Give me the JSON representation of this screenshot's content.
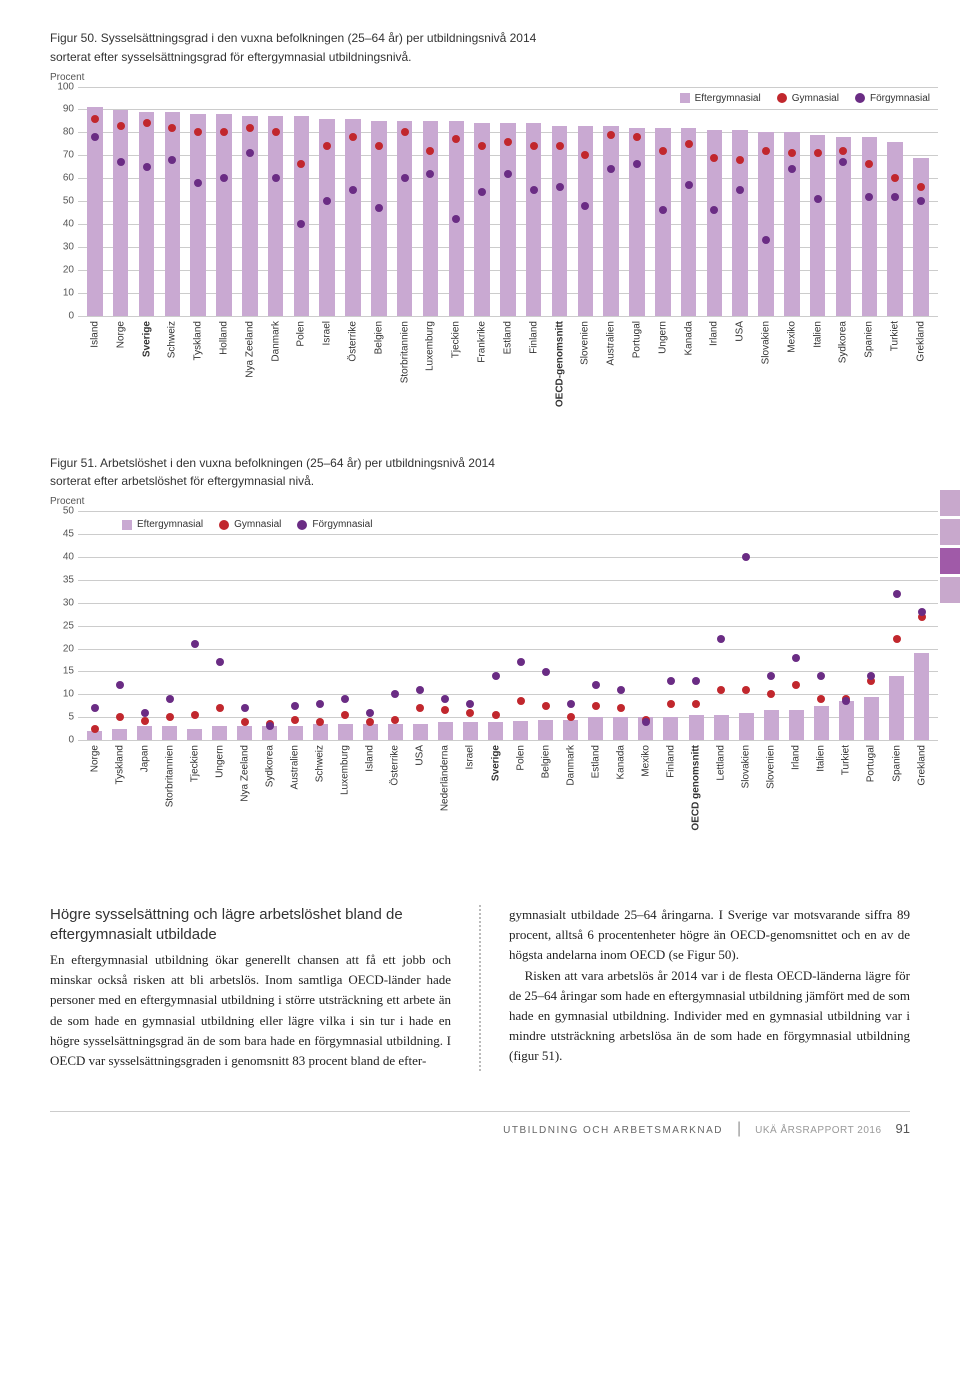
{
  "colors": {
    "bar": "#c9a9d2",
    "efter": "#c9a9d2",
    "gym": "#c1272d",
    "for": "#6a2c84",
    "grid": "#cccccc",
    "bg": "#ffffff"
  },
  "chart50": {
    "title_l1": "Figur 50. Sysselsättningsgrad i den vuxna befolkningen (25–64 år) per utbildningsnivå 2014",
    "title_l2": "sorterat efter sysselsättningsgrad för eftergymnasial utbildningsnivå.",
    "ylabel": "Procent",
    "ylim": [
      0,
      100
    ],
    "ytick_step": 10,
    "legend": [
      "Eftergymnasial",
      "Gymnasial",
      "Förgymnasial"
    ],
    "data": [
      {
        "c": "Island",
        "e": 91,
        "g": 86,
        "f": 78
      },
      {
        "c": "Norge",
        "e": 90,
        "g": 83,
        "f": 67
      },
      {
        "c": "Sverige",
        "e": 89,
        "g": 84,
        "f": 65,
        "bold": true
      },
      {
        "c": "Schweiz",
        "e": 89,
        "g": 82,
        "f": 68
      },
      {
        "c": "Tyskland",
        "e": 88,
        "g": 80,
        "f": 58
      },
      {
        "c": "Holland",
        "e": 88,
        "g": 80,
        "f": 60
      },
      {
        "c": "Nya Zeeland",
        "e": 87,
        "g": 82,
        "f": 71
      },
      {
        "c": "Danmark",
        "e": 87,
        "g": 80,
        "f": 60
      },
      {
        "c": "Polen",
        "e": 87,
        "g": 66,
        "f": 40
      },
      {
        "c": "Israel",
        "e": 86,
        "g": 74,
        "f": 50
      },
      {
        "c": "Österrike",
        "e": 86,
        "g": 78,
        "f": 55
      },
      {
        "c": "Belgien",
        "e": 85,
        "g": 74,
        "f": 47
      },
      {
        "c": "Storbritannien",
        "e": 85,
        "g": 80,
        "f": 60
      },
      {
        "c": "Luxemburg",
        "e": 85,
        "g": 72,
        "f": 62
      },
      {
        "c": "Tjeckien",
        "e": 85,
        "g": 77,
        "f": 42
      },
      {
        "c": "Frankrike",
        "e": 84,
        "g": 74,
        "f": 54
      },
      {
        "c": "Estland",
        "e": 84,
        "g": 76,
        "f": 62
      },
      {
        "c": "Finland",
        "e": 84,
        "g": 74,
        "f": 55
      },
      {
        "c": "OECD-genomsnitt",
        "e": 83,
        "g": 74,
        "f": 56,
        "bold": true
      },
      {
        "c": "Slovenien",
        "e": 83,
        "g": 70,
        "f": 48
      },
      {
        "c": "Australien",
        "e": 83,
        "g": 79,
        "f": 64
      },
      {
        "c": "Portugal",
        "e": 82,
        "g": 78,
        "f": 66
      },
      {
        "c": "Ungern",
        "e": 82,
        "g": 72,
        "f": 46
      },
      {
        "c": "Kanada",
        "e": 82,
        "g": 75,
        "f": 57
      },
      {
        "c": "Irland",
        "e": 81,
        "g": 69,
        "f": 46
      },
      {
        "c": "USA",
        "e": 81,
        "g": 68,
        "f": 55
      },
      {
        "c": "Slovakien",
        "e": 80,
        "g": 72,
        "f": 33
      },
      {
        "c": "Mexiko",
        "e": 80,
        "g": 71,
        "f": 64
      },
      {
        "c": "Italien",
        "e": 79,
        "g": 71,
        "f": 51
      },
      {
        "c": "Sydkorea",
        "e": 78,
        "g": 72,
        "f": 67
      },
      {
        "c": "Spanien",
        "e": 78,
        "g": 66,
        "f": 52
      },
      {
        "c": "Turkiet",
        "e": 76,
        "g": 60,
        "f": 52
      },
      {
        "c": "Grekland",
        "e": 69,
        "g": 56,
        "f": 50
      }
    ]
  },
  "chart51": {
    "title_l1": "Figur 51. Arbetslöshet i den vuxna befolkningen (25–64 år) per utbildningsnivå 2014",
    "title_l2": "sorterat efter arbetslöshet för eftergymnasial nivå.",
    "ylabel": "Procent",
    "ylim": [
      0,
      50
    ],
    "ytick_step": 5,
    "legend": [
      "Eftergymnasial",
      "Gymnasial",
      "Förgymnasial"
    ],
    "data": [
      {
        "c": "Norge",
        "e": 2,
        "g": 2.5,
        "f": 7
      },
      {
        "c": "Tyskland",
        "e": 2.5,
        "g": 5,
        "f": 12
      },
      {
        "c": "Japan",
        "e": 3,
        "g": 4.2,
        "f": 6
      },
      {
        "c": "Storbritannien",
        "e": 3,
        "g": 5,
        "f": 9
      },
      {
        "c": "Tjeckien",
        "e": 2.5,
        "g": 5.5,
        "f": 21
      },
      {
        "c": "Ungern",
        "e": 3,
        "g": 7,
        "f": 17
      },
      {
        "c": "Nya Zeeland",
        "e": 3,
        "g": 4,
        "f": 7
      },
      {
        "c": "Sydkorea",
        "e": 3,
        "g": 3.5,
        "f": 3
      },
      {
        "c": "Australien",
        "e": 3.2,
        "g": 4.5,
        "f": 7.5
      },
      {
        "c": "Schweiz",
        "e": 3.5,
        "g": 4,
        "f": 8
      },
      {
        "c": "Luxemburg",
        "e": 3.5,
        "g": 5.5,
        "f": 9
      },
      {
        "c": "Island",
        "e": 3.5,
        "g": 4,
        "f": 6
      },
      {
        "c": "Österrike",
        "e": 3.5,
        "g": 4.5,
        "f": 10
      },
      {
        "c": "USA",
        "e": 3.5,
        "g": 7,
        "f": 11
      },
      {
        "c": "Nederländerna",
        "e": 4,
        "g": 6.5,
        "f": 9
      },
      {
        "c": "Israel",
        "e": 4,
        "g": 6,
        "f": 8
      },
      {
        "c": "Sverige",
        "e": 4,
        "g": 5.5,
        "f": 14,
        "bold": true
      },
      {
        "c": "Polen",
        "e": 4.2,
        "g": 8.5,
        "f": 17
      },
      {
        "c": "Belgien",
        "e": 4.5,
        "g": 7.5,
        "f": 15
      },
      {
        "c": "Danmark",
        "e": 4.5,
        "g": 5,
        "f": 8
      },
      {
        "c": "Estland",
        "e": 5,
        "g": 7.5,
        "f": 12
      },
      {
        "c": "Kanada",
        "e": 5,
        "g": 7,
        "f": 11
      },
      {
        "c": "Mexiko",
        "e": 5,
        "g": 4.5,
        "f": 4
      },
      {
        "c": "Finland",
        "e": 5,
        "g": 8,
        "f": 13
      },
      {
        "c": "OECD genomsnitt",
        "e": 5.5,
        "g": 8,
        "f": 13,
        "bold": true
      },
      {
        "c": "Lettland",
        "e": 5.5,
        "g": 11,
        "f": 22
      },
      {
        "c": "Slovakien",
        "e": 6,
        "g": 11,
        "f": 40
      },
      {
        "c": "Slovenien",
        "e": 6.5,
        "g": 10,
        "f": 14
      },
      {
        "c": "Irland",
        "e": 6.5,
        "g": 12,
        "f": 18
      },
      {
        "c": "Italien",
        "e": 7.5,
        "g": 9,
        "f": 14
      },
      {
        "c": "Turkiet",
        "e": 8.5,
        "g": 9,
        "f": 8.5
      },
      {
        "c": "Portugal",
        "e": 9.5,
        "g": 13,
        "f": 14
      },
      {
        "c": "Spanien",
        "e": 14,
        "g": 22,
        "f": 32
      },
      {
        "c": "Grekland",
        "e": 19,
        "g": 27,
        "f": 28
      }
    ]
  },
  "article": {
    "heading": "Högre sysselsättning och lägre arbetslöshet bland de eftergymnasialt utbildade",
    "left_p1": "En eftergymnasial utbildning ökar generellt chansen att få ett jobb och minskar också risken att bli arbetslös. Inom samtliga OECD-länder hade personer med en eftergymnasial utbildning i större utsträckning ett arbete än de som hade en gymnasial utbildning eller lägre vilka i sin tur i hade en högre sysselsättningsgrad än de som bara hade en förgymnasial utbildning. I OECD var sysselsättningsgraden i genomsnitt 83 procent bland de efter-",
    "right_p1": "gymnasialt utbildade 25–64 åringarna. I Sverige var motsvarande siffra 89 procent, alltså 6 procentenheter högre än OECD-genomsnittet och en av de högsta andelarna inom OECD (se Figur 50).",
    "right_p2": "Risken att vara arbetslös år 2014 var i de flesta OECD-länderna lägre för de 25–64 åringar som hade en eftergymnasial utbildning jämfört med de som hade en gymnasial utbildning. Individer med en gymnasial utbildning var i mindre utsträckning arbetslösa än de som hade en förgymnasial utbildning (figur 51)."
  },
  "footer": {
    "section": "UTBILDNING OCH ARBETSMARKNAD",
    "doc": "UKÄ ÅRSRAPPORT 2016",
    "page": "91"
  }
}
